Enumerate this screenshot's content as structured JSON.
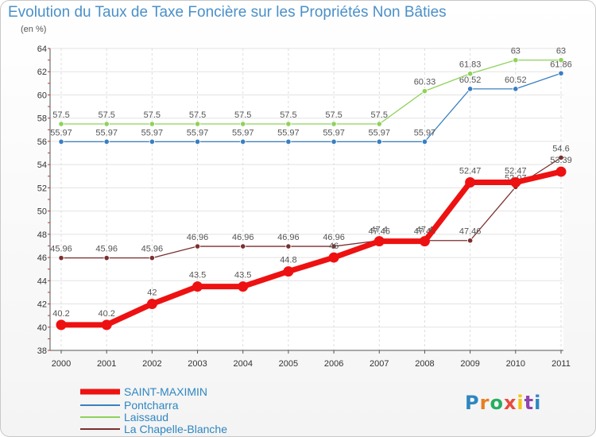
{
  "chart_data": {
    "type": "line",
    "title": "Evolution du Taux de Taxe Foncière sur les Propriétés Non Bâties",
    "unit_label": "(en %)",
    "xlabel": "",
    "ylabel": "(en %)",
    "ylim": [
      38,
      64
    ],
    "y_ticks": [
      38,
      40,
      42,
      44,
      46,
      48,
      50,
      52,
      54,
      56,
      58,
      60,
      62,
      64
    ],
    "categories": [
      "2000",
      "2001",
      "2002",
      "2003",
      "2004",
      "2005",
      "2006",
      "2007",
      "2008",
      "2009",
      "2010",
      "2011"
    ],
    "series": [
      {
        "name": "La Chapelle-Blanche",
        "color": "#7b2f2f",
        "values": [
          45.96,
          45.96,
          45.96,
          46.96,
          46.96,
          46.96,
          46.96,
          47.46,
          47.46,
          47.46,
          52.07,
          54.6
        ],
        "labels": [
          "45.96",
          "45.96",
          "45.96",
          "46.96",
          "46.96",
          "46.96",
          "46.96",
          "47.46",
          "47.46",
          "47.46",
          "52.07",
          "54.6"
        ]
      },
      {
        "name": "Pontcharra",
        "color": "#3a7fc1",
        "values": [
          55.97,
          55.97,
          55.97,
          55.97,
          55.97,
          55.97,
          55.97,
          55.97,
          55.97,
          60.52,
          60.52,
          61.86
        ],
        "labels": [
          "55.97",
          "55.97",
          "55.97",
          "55.97",
          "55.97",
          "55.97",
          "55.97",
          "55.97",
          "55.97",
          "60.52",
          "60.52",
          "61.86"
        ]
      },
      {
        "name": "Laissaud",
        "color": "#8ed25a",
        "values": [
          57.5,
          57.5,
          57.5,
          57.5,
          57.5,
          57.5,
          57.5,
          57.5,
          60.33,
          61.83,
          63,
          63
        ],
        "labels": [
          "57.5",
          "57.5",
          "57.5",
          "57.5",
          "57.5",
          "57.5",
          "57.5",
          "57.5",
          "60.33",
          "61.83",
          "63",
          "63"
        ]
      },
      {
        "name": "SAINT-MAXIMIN",
        "color": "#ee1111",
        "values": [
          40.2,
          40.2,
          42,
          43.5,
          43.5,
          44.8,
          46,
          47.4,
          47.4,
          52.47,
          52.47,
          53.39
        ],
        "labels": [
          "40.2",
          "40.2",
          "42",
          "43.5",
          "43.5",
          "44.8",
          "46",
          "47.4",
          "47.4",
          "52.47",
          "52.47",
          "53.39"
        ]
      }
    ],
    "legend_order": [
      "SAINT-MAXIMIN",
      "Pontcharra",
      "Laissaud",
      "La Chapelle-Blanche"
    ],
    "legend_position": "bottom-left"
  },
  "logo": {
    "letters": [
      "P",
      "r",
      "o",
      "x",
      "i",
      "t",
      "i"
    ],
    "colors": [
      "#2e86c1",
      "#e67e22",
      "#27ae60",
      "#e74c3c",
      "#f1c40f",
      "#8e44ad",
      "#2e86c1"
    ]
  }
}
